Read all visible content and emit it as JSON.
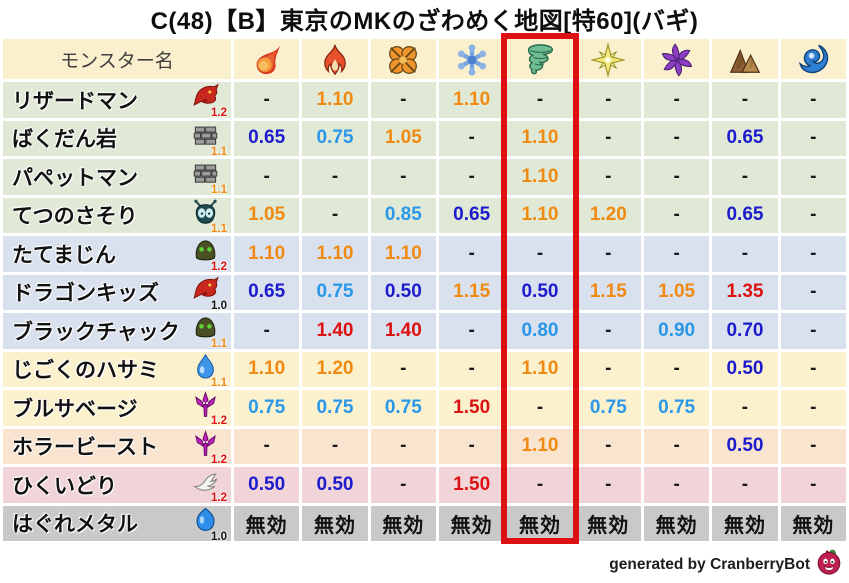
{
  "title": "C(48)【B】東京のMKのざわめく地図[特60](バギ)",
  "footer": {
    "credit": "generated by CranberryBot",
    "bot_icon": "cranberry-bot-icon"
  },
  "colors": {
    "highlight_box": "#dd1111",
    "value_low": "#1c1ccd",
    "value_mid": "#2a97e9",
    "value_high": "#f08a12",
    "value_max": "#dd1111",
    "value_neutral": "#1a1a1a",
    "header_bg": "#fbf0cd",
    "row_green": "#e0e9d6",
    "row_blue": "#d9e1ef",
    "row_cream": "#fcf1cd",
    "row_peach": "#f9e4cf",
    "row_pink": "#f1d4d8",
    "row_gray": "#c9c9c9",
    "rate_badge_red": "#dd1111",
    "rate_badge_orange": "#f08a12"
  },
  "chart_data": {
    "type": "table",
    "title": "C(48)【B】東京のMKのざわめく地図[特60](バギ)",
    "name_header": "モンスター名",
    "highlight_column_index": 4,
    "element_columns": [
      {
        "icon": "mera-fireball-icon"
      },
      {
        "icon": "gira-flame-icon"
      },
      {
        "icon": "io-explosion-icon"
      },
      {
        "icon": "hyado-ice-icon"
      },
      {
        "icon": "bagi-wind-icon",
        "highlighted": true
      },
      {
        "icon": "dein-light-icon"
      },
      {
        "icon": "dolma-dark-icon"
      },
      {
        "icon": "jibaria-earth-icon"
      },
      {
        "icon": "water-wave-icon"
      }
    ],
    "rows": [
      {
        "name": "リザードマン",
        "family_icon": "dragon-icon",
        "rate": "1.2",
        "rate_color": "red",
        "group": "green",
        "values": [
          "-",
          "1.10",
          "-",
          "1.10",
          "-",
          "-",
          "-",
          "-",
          "-"
        ]
      },
      {
        "name": "ばくだん岩",
        "family_icon": "material-icon",
        "rate": "1.1",
        "rate_color": "orange",
        "group": "green",
        "values": [
          "0.65",
          "0.75",
          "1.05",
          "-",
          "1.10",
          "-",
          "-",
          "0.65",
          "-"
        ]
      },
      {
        "name": "パペットマン",
        "family_icon": "material-icon",
        "rate": "1.1",
        "rate_color": "orange",
        "group": "green",
        "values": [
          "-",
          "-",
          "-",
          "-",
          "1.10",
          "-",
          "-",
          "-",
          "-"
        ]
      },
      {
        "name": "てつのさそり",
        "family_icon": "bug-icon",
        "rate": "1.1",
        "rate_color": "orange",
        "group": "green",
        "values": [
          "1.05",
          "-",
          "0.85",
          "0.65",
          "1.10",
          "1.20",
          "-",
          "0.65",
          "-"
        ]
      },
      {
        "name": "たてまじん",
        "family_icon": "golem-icon",
        "rate": "1.2",
        "rate_color": "red",
        "group": "blue",
        "values": [
          "1.10",
          "1.10",
          "1.10",
          "-",
          "-",
          "-",
          "-",
          "-",
          "-"
        ]
      },
      {
        "name": "ドラゴンキッズ",
        "family_icon": "dragon-icon",
        "rate": "1.0",
        "rate_color": "black",
        "group": "blue",
        "values": [
          "0.65",
          "0.75",
          "0.50",
          "1.15",
          "0.50",
          "1.15",
          "1.05",
          "1.35",
          "-"
        ]
      },
      {
        "name": "ブラックチャック",
        "family_icon": "golem-icon",
        "rate": "1.1",
        "rate_color": "orange",
        "group": "blue",
        "values": [
          "-",
          "1.40",
          "1.40",
          "-",
          "0.80",
          "-",
          "0.90",
          "0.70",
          "-"
        ]
      },
      {
        "name": "じごくのハサミ",
        "family_icon": "waterdrop-icon",
        "rate": "1.1",
        "rate_color": "orange",
        "group": "cream",
        "values": [
          "1.10",
          "1.20",
          "-",
          "-",
          "1.10",
          "-",
          "-",
          "0.50",
          "-"
        ]
      },
      {
        "name": "ブルサベージ",
        "family_icon": "demon-icon",
        "rate": "1.2",
        "rate_color": "red",
        "group": "cream",
        "values": [
          "0.75",
          "0.75",
          "0.75",
          "1.50",
          "-",
          "0.75",
          "0.75",
          "-",
          "-"
        ]
      },
      {
        "name": "ホラービースト",
        "family_icon": "demon-icon",
        "rate": "1.2",
        "rate_color": "red",
        "group": "peach",
        "values": [
          "-",
          "-",
          "-",
          "-",
          "1.10",
          "-",
          "-",
          "0.50",
          "-"
        ]
      },
      {
        "name": "ひくいどり",
        "family_icon": "wing-icon",
        "rate": "1.2",
        "rate_color": "red",
        "group": "pink",
        "values": [
          "0.50",
          "0.50",
          "-",
          "1.50",
          "-",
          "-",
          "-",
          "-",
          "-"
        ]
      },
      {
        "name": "はぐれメタル",
        "family_icon": "slime-icon",
        "rate": "1.0",
        "rate_color": "black",
        "group": "gray",
        "values": [
          "無効",
          "無効",
          "無効",
          "無効",
          "無効",
          "無効",
          "無効",
          "無効",
          "無効"
        ]
      }
    ],
    "immune_label": "無効",
    "empty_label": "-"
  }
}
